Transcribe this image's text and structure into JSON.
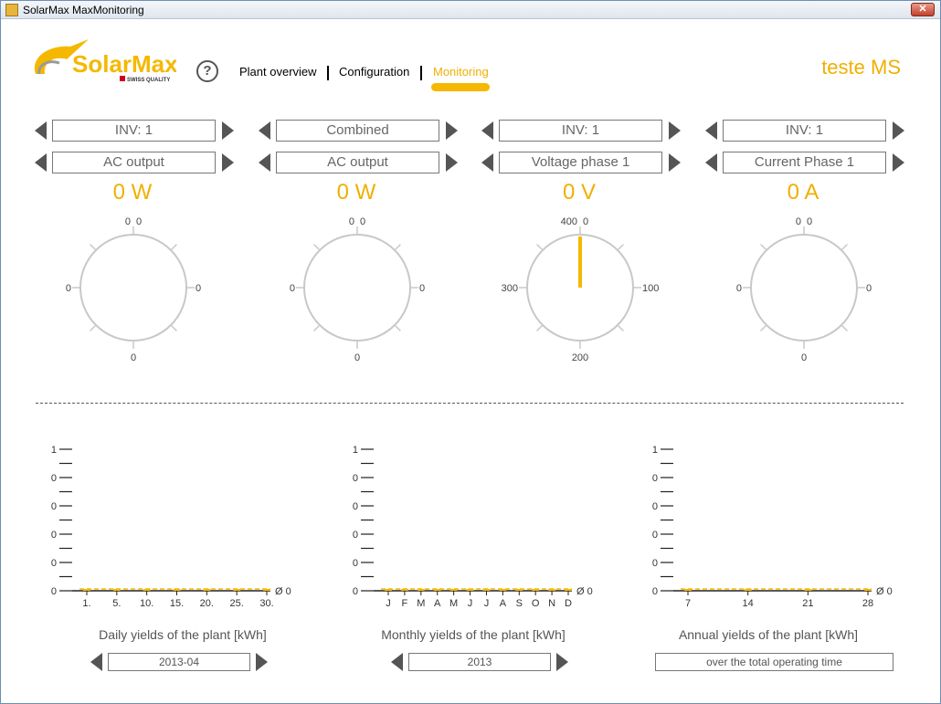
{
  "window": {
    "title": "SolarMax MaxMonitoring",
    "close_symbol": "✕"
  },
  "header": {
    "logo_text": "SolarMax",
    "logo_sub": "SWISS QUALITY",
    "help_symbol": "?",
    "nav": [
      {
        "label": "Plant overview"
      },
      {
        "label": "Configuration"
      },
      {
        "label": "Monitoring",
        "active": true
      }
    ],
    "plant_name": "teste MS"
  },
  "gauges": [
    {
      "device": "INV: 1",
      "measure": "AC output",
      "value": "0 W",
      "ticks": {
        "top_left": "0",
        "top_right": "0",
        "left": "0",
        "right": "0",
        "bottom": "0"
      },
      "needle": false
    },
    {
      "device": "Combined",
      "measure": "AC output",
      "value": "0 W",
      "ticks": {
        "top_left": "0",
        "top_right": "0",
        "left": "0",
        "right": "0",
        "bottom": "0"
      },
      "needle": false
    },
    {
      "device": "INV: 1",
      "measure": "Voltage phase 1",
      "value": "0 V",
      "ticks": {
        "top_left": "400",
        "top_right": "0",
        "left": "300",
        "right": "100",
        "bottom": "200"
      },
      "needle": true
    },
    {
      "device": "INV: 1",
      "measure": "Current Phase 1",
      "value": "0 A",
      "ticks": {
        "top_left": "0",
        "top_right": "0",
        "left": "0",
        "right": "0",
        "bottom": "0"
      },
      "needle": false
    }
  ],
  "charts": [
    {
      "title": "Daily yields of the plant [kWh]",
      "period": "2013-04",
      "has_arrows": true,
      "y_labels": [
        "1",
        "0",
        "0",
        "0",
        "0",
        "0"
      ],
      "x_labels": [
        "1.",
        "5.",
        "10.",
        "15.",
        "20.",
        "25.",
        "30."
      ],
      "avg_label": "Ø 0"
    },
    {
      "title": "Monthly yields of the plant [kWh]",
      "period": "2013",
      "has_arrows": true,
      "y_labels": [
        "1",
        "0",
        "0",
        "0",
        "0",
        "0"
      ],
      "x_labels": [
        "J",
        "F",
        "M",
        "A",
        "M",
        "J",
        "J",
        "A",
        "S",
        "O",
        "N",
        "D"
      ],
      "avg_label": "Ø 0"
    },
    {
      "title": "Annual yields of the plant [kWh]",
      "period": "over the total operating time",
      "has_arrows": false,
      "y_labels": [
        "1",
        "0",
        "0",
        "0",
        "0",
        "0"
      ],
      "x_labels": [
        "7",
        "14",
        "21",
        "28"
      ],
      "avg_label": "Ø 0"
    }
  ],
  "chart_data": [
    {
      "type": "bar",
      "title": "Daily yields of the plant [kWh]",
      "ylim": [
        0,
        1
      ],
      "categories": [
        "1.",
        "5.",
        "10.",
        "15.",
        "20.",
        "25.",
        "30."
      ],
      "values": [
        0,
        0,
        0,
        0,
        0,
        0,
        0
      ],
      "average": 0
    },
    {
      "type": "bar",
      "title": "Monthly yields of the plant [kWh]",
      "ylim": [
        0,
        1
      ],
      "categories": [
        "J",
        "F",
        "M",
        "A",
        "M",
        "J",
        "J",
        "A",
        "S",
        "O",
        "N",
        "D"
      ],
      "values": [
        0,
        0,
        0,
        0,
        0,
        0,
        0,
        0,
        0,
        0,
        0,
        0
      ],
      "average": 0
    },
    {
      "type": "bar",
      "title": "Annual yields of the plant [kWh]",
      "ylim": [
        0,
        1
      ],
      "categories": [
        "7",
        "14",
        "21",
        "28"
      ],
      "values": [
        0,
        0,
        0,
        0
      ],
      "average": 0
    }
  ],
  "colors": {
    "accent": "#f5b800",
    "text": "#555555"
  }
}
